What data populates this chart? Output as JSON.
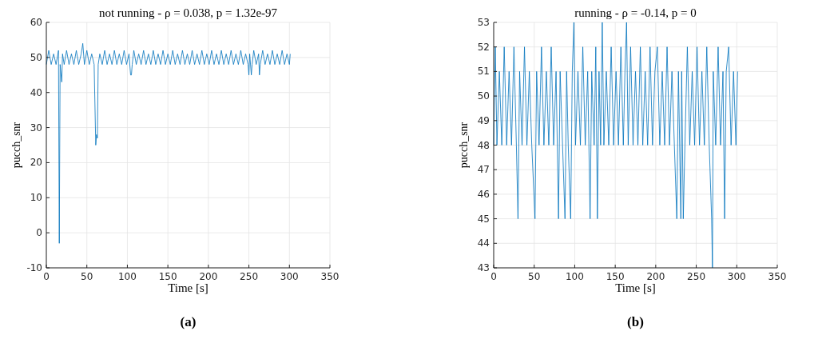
{
  "chart_data": [
    {
      "type": "line",
      "title": "not running - ρ = 0.038, p = 1.32e-97",
      "xlabel": "Time [s]",
      "ylabel": "pucch_snr",
      "annotations": [
        "(a)"
      ],
      "grid": true,
      "xlim": [
        0,
        350
      ],
      "xticks": [
        0,
        50,
        100,
        150,
        200,
        250,
        300,
        350
      ],
      "ylim": [
        -10,
        60
      ],
      "yticks": [
        -10,
        0,
        10,
        20,
        30,
        40,
        50,
        60
      ],
      "series": [
        {
          "color": "#0072bd",
          "x": [
            0,
            3,
            6,
            9,
            12,
            15,
            16,
            17,
            19,
            20,
            22,
            25,
            28,
            31,
            34,
            37,
            40,
            43,
            45,
            47,
            50,
            53,
            56,
            59,
            61,
            62,
            63,
            64,
            66,
            69,
            72,
            75,
            78,
            81,
            84,
            87,
            90,
            93,
            96,
            99,
            102,
            104,
            105,
            106,
            108,
            111,
            114,
            117,
            120,
            123,
            126,
            129,
            132,
            135,
            138,
            141,
            144,
            147,
            150,
            153,
            156,
            159,
            162,
            165,
            168,
            171,
            174,
            177,
            180,
            183,
            186,
            189,
            192,
            195,
            198,
            201,
            204,
            207,
            210,
            213,
            216,
            219,
            222,
            225,
            228,
            231,
            234,
            237,
            240,
            243,
            246,
            249,
            250,
            251,
            253,
            254,
            256,
            259,
            262,
            263,
            264,
            267,
            270,
            273,
            276,
            279,
            282,
            285,
            288,
            291,
            294,
            297,
            300,
            301
          ],
          "values": [
            48,
            52,
            48,
            51,
            48,
            52,
            -3,
            48,
            43,
            51,
            48,
            52,
            48,
            51,
            48,
            52,
            48,
            51,
            54,
            48,
            52,
            48,
            51,
            48,
            25,
            28,
            27,
            48,
            51,
            48,
            52,
            48,
            51,
            48,
            52,
            48,
            51,
            48,
            52,
            48,
            51,
            45,
            45,
            48,
            52,
            48,
            51,
            48,
            52,
            48,
            51,
            48,
            52,
            48,
            51,
            48,
            52,
            48,
            51,
            48,
            52,
            48,
            51,
            48,
            52,
            48,
            51,
            48,
            52,
            48,
            51,
            48,
            52,
            48,
            51,
            48,
            52,
            48,
            51,
            48,
            52,
            48,
            51,
            48,
            52,
            48,
            51,
            48,
            52,
            48,
            51,
            48,
            45,
            51,
            45,
            48,
            52,
            48,
            51,
            45,
            48,
            52,
            48,
            51,
            48,
            52,
            48,
            51,
            48,
            52,
            48,
            51,
            48,
            51
          ]
        }
      ]
    },
    {
      "type": "line",
      "title": "running - ρ = -0.14, p = 0",
      "xlabel": "Time [s]",
      "ylabel": "pucch_snr",
      "annotations": [
        "(b)"
      ],
      "grid": true,
      "xlim": [
        0,
        350
      ],
      "xticks": [
        0,
        50,
        100,
        150,
        200,
        250,
        300,
        350
      ],
      "ylim": [
        43,
        53
      ],
      "yticks": [
        43,
        44,
        45,
        46,
        47,
        48,
        49,
        50,
        51,
        52,
        53
      ],
      "series": [
        {
          "color": "#0072bd",
          "x": [
            0,
            2,
            4,
            7,
            10,
            13,
            16,
            19,
            22,
            25,
            28,
            30,
            32,
            35,
            38,
            41,
            44,
            47,
            51,
            53,
            56,
            59,
            62,
            65,
            68,
            71,
            74,
            77,
            80,
            82,
            85,
            88,
            90,
            92,
            95,
            97,
            99,
            101,
            104,
            107,
            110,
            113,
            116,
            119,
            121,
            124,
            126,
            128,
            130,
            132,
            134,
            136,
            139,
            142,
            145,
            148,
            151,
            154,
            157,
            160,
            162,
            164,
            166,
            169,
            172,
            175,
            178,
            181,
            184,
            187,
            190,
            193,
            196,
            199,
            202,
            205,
            208,
            211,
            214,
            217,
            220,
            223,
            226,
            228,
            231,
            232,
            234,
            236,
            239,
            242,
            245,
            248,
            251,
            254,
            257,
            260,
            263,
            266,
            269,
            270,
            271,
            274,
            277,
            280,
            283,
            285,
            287,
            290,
            293,
            296,
            299,
            301
          ],
          "values": [
            48,
            52,
            48,
            51,
            48,
            52,
            48,
            51,
            48,
            52,
            48,
            45,
            51,
            48,
            52,
            48,
            51,
            48,
            45,
            51,
            48,
            52,
            48,
            51,
            48,
            52,
            48,
            51,
            45,
            51,
            48,
            45,
            51,
            48,
            45,
            51,
            53,
            48,
            51,
            48,
            52,
            48,
            51,
            45,
            51,
            48,
            52,
            45,
            51,
            48,
            53,
            48,
            51,
            48,
            52,
            48,
            51,
            48,
            52,
            48,
            51,
            53,
            48,
            52,
            48,
            51,
            48,
            52,
            48,
            51,
            48,
            52,
            48,
            51,
            52,
            48,
            51,
            48,
            52,
            48,
            51,
            48,
            45,
            51,
            45,
            51,
            45,
            48,
            52,
            48,
            51,
            48,
            52,
            48,
            51,
            48,
            52,
            48,
            45,
            43,
            51,
            48,
            52,
            48,
            51,
            45,
            51,
            52,
            48,
            51,
            48,
            51
          ]
        }
      ]
    }
  ]
}
